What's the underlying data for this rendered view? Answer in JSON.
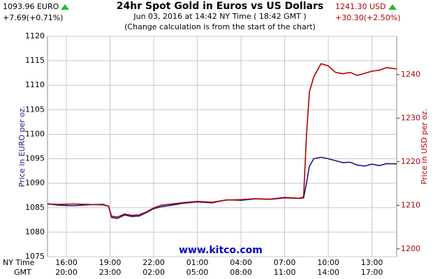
{
  "chart_data": {
    "type": "line",
    "title": "24hr Spot Gold in Euros vs US Dollars",
    "subtitle": "Jun 03, 2016 at 14:42 NY Time ( 18:42 GMT )",
    "note": "(Change calculation is from the start of the chart)",
    "left_quote": {
      "price": "1093.96 EURO",
      "change": "+7.69(+0.71%)"
    },
    "right_quote": {
      "price": "1241.30 USD",
      "change": "+30.30(+2.50%)"
    },
    "ylabel": "Price in EURO per oz.",
    "y2label": "Price in USD per oz.",
    "xlabel": "NY Time",
    "xlabel2": "GMT",
    "watermark": "www.kitco.com",
    "x": [
      14.7,
      15.5,
      16.5,
      17.5,
      18.5,
      18.9,
      19.1,
      19.5,
      20,
      20.5,
      21,
      21.5,
      22,
      22.5,
      23,
      24,
      25,
      26,
      27,
      28,
      29,
      30,
      31,
      32,
      32.3,
      32.5,
      32.7,
      33,
      33.5,
      34,
      34.5,
      35,
      35.5,
      36,
      36.5,
      37,
      37.5,
      38,
      38.7
    ],
    "xlim": [
      14.7,
      38.7
    ],
    "xticks": [
      {
        "value": 16,
        "label": "16:00"
      },
      {
        "value": 19,
        "label": "19:00"
      },
      {
        "value": 22,
        "label": "22:00"
      },
      {
        "value": 25,
        "label": "01:00"
      },
      {
        "value": 28,
        "label": "04:00"
      },
      {
        "value": 31,
        "label": "07:00"
      },
      {
        "value": 34,
        "label": "10:00"
      },
      {
        "value": 37,
        "label": "13:00"
      }
    ],
    "xticks2": [
      {
        "value": 16,
        "label": "20:00"
      },
      {
        "value": 19,
        "label": "23:00"
      },
      {
        "value": 22,
        "label": "02:00"
      },
      {
        "value": 25,
        "label": "05:00"
      },
      {
        "value": 28,
        "label": "08:00"
      },
      {
        "value": 31,
        "label": "11:00"
      },
      {
        "value": 34,
        "label": "14:00"
      },
      {
        "value": 37,
        "label": "17:00"
      }
    ],
    "ylim": [
      1075,
      1120
    ],
    "yticks": [
      1075,
      1080,
      1085,
      1090,
      1095,
      1100,
      1105,
      1110,
      1115,
      1120
    ],
    "y2lim": [
      1198.2,
      1248.8
    ],
    "y2ticks": [
      1200,
      1210,
      1220,
      1230,
      1240
    ],
    "grid": true,
    "series": [
      {
        "name": "EURO",
        "color": "#1a1a80",
        "values": [
          1085.8,
          1085.5,
          1085.4,
          1085.6,
          1085.7,
          1085.3,
          1083.0,
          1082.8,
          1083.5,
          1083.2,
          1083.3,
          1084.0,
          1084.8,
          1085.2,
          1085.4,
          1085.9,
          1086.2,
          1086.0,
          1086.6,
          1086.5,
          1086.8,
          1086.7,
          1087.0,
          1086.9,
          1087.0,
          1090.0,
          1093.5,
          1095.0,
          1095.3,
          1095.0,
          1094.6,
          1094.2,
          1094.3,
          1093.7,
          1093.5,
          1093.9,
          1093.6,
          1094.0,
          1093.96
        ]
      },
      {
        "name": "USD",
        "color": "#b00000",
        "axis": "y2",
        "values": [
          1210.3,
          1210.2,
          1210.3,
          1210.2,
          1210.1,
          1209.8,
          1207.5,
          1207.3,
          1208.0,
          1207.7,
          1207.8,
          1208.5,
          1209.4,
          1210.0,
          1210.2,
          1210.6,
          1210.9,
          1210.7,
          1211.2,
          1211.3,
          1211.5,
          1211.4,
          1211.8,
          1211.6,
          1211.9,
          1226.0,
          1236.0,
          1239.5,
          1242.5,
          1242.0,
          1240.5,
          1240.2,
          1240.5,
          1239.8,
          1240.3,
          1240.8,
          1241.0,
          1241.6,
          1241.3
        ]
      }
    ]
  }
}
